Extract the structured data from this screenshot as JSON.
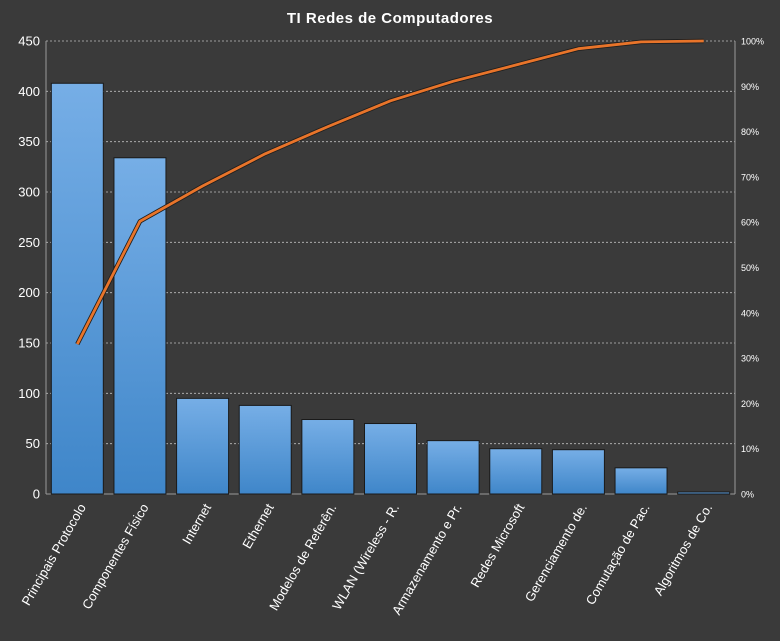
{
  "chart_data": {
    "type": "bar",
    "title": "TI Redes de Computadores",
    "categories": [
      "Principais Protocolo",
      "Componentes Físico",
      "Internet",
      "Ethernet",
      "Modelos de Referên.",
      "WLAN (Wireless - R.",
      "Armazenamento  e Pr.",
      "Redes Microsoft",
      "Gerenciamento de.",
      "Comutação de Pac.",
      "Algoritmos de Co."
    ],
    "series": [
      {
        "type": "bar",
        "values": [
          408,
          334,
          95,
          88,
          74,
          70,
          53,
          45,
          44,
          26,
          2
        ]
      },
      {
        "type": "line",
        "axis": "right",
        "values": [
          0.331,
          0.602,
          0.68,
          0.751,
          0.811,
          0.868,
          0.911,
          0.947,
          0.983,
          0.998,
          1.0
        ]
      }
    ],
    "ylim": [
      0,
      450
    ],
    "yticks": [
      0,
      50,
      100,
      150,
      200,
      250,
      300,
      350,
      400,
      450
    ],
    "y2lim": [
      0,
      1
    ],
    "y2ticks": [
      "0%",
      "10%",
      "20%",
      "30%",
      "40%",
      "50%",
      "60%",
      "70%",
      "80%",
      "90%",
      "100%"
    ],
    "grid": true,
    "colors": {
      "background": "#3a3a3a",
      "bar_top": "#76aee6",
      "bar_bottom": "#3f86c9",
      "line": "#e8742a",
      "grid": "#bdbdbd",
      "text": "#ffffff"
    }
  }
}
